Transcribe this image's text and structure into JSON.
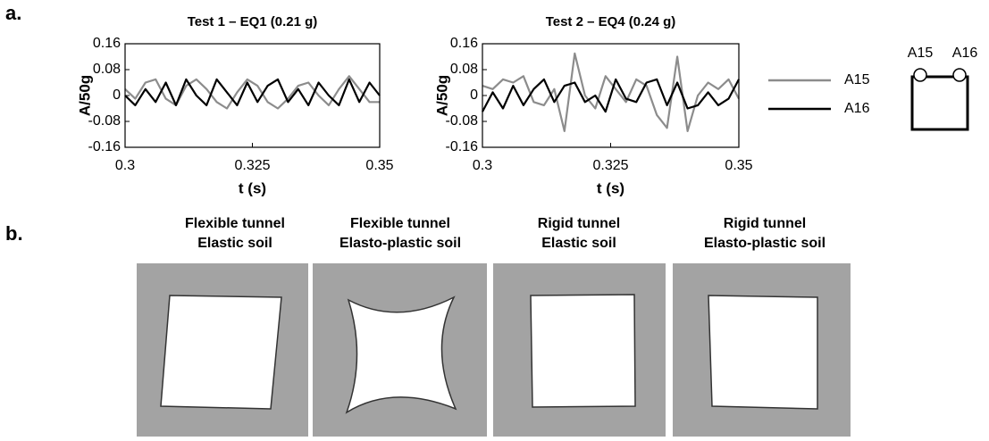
{
  "panel_labels": [
    "a.",
    "b."
  ],
  "chart_data": [
    {
      "type": "line",
      "title": "Test 1 – EQ1 (0.21 g)",
      "xlabel": "t (s)",
      "ylabel": "A/50g",
      "x": [
        0.3,
        0.302,
        0.304,
        0.306,
        0.308,
        0.31,
        0.312,
        0.314,
        0.316,
        0.318,
        0.32,
        0.322,
        0.324,
        0.326,
        0.328,
        0.33,
        0.332,
        0.334,
        0.336,
        0.338,
        0.34,
        0.342,
        0.344,
        0.346,
        0.348,
        0.35
      ],
      "series": [
        {
          "name": "A15",
          "color": "#8c8c8c",
          "values": [
            0.02,
            -0.01,
            0.04,
            0.05,
            -0.01,
            -0.03,
            0.03,
            0.05,
            0.02,
            -0.02,
            -0.04,
            0.01,
            0.05,
            0.03,
            -0.02,
            -0.04,
            -0.01,
            0.03,
            0.04,
            0.0,
            -0.03,
            0.02,
            0.06,
            0.02,
            -0.02,
            -0.02
          ]
        },
        {
          "name": "A16",
          "color": "#000000",
          "values": [
            0.0,
            -0.03,
            0.02,
            -0.02,
            0.04,
            -0.03,
            0.05,
            0.0,
            -0.03,
            0.05,
            0.01,
            -0.03,
            0.04,
            -0.02,
            0.03,
            0.05,
            -0.02,
            0.02,
            -0.03,
            0.04,
            0.0,
            -0.03,
            0.05,
            -0.02,
            0.04,
            0.0
          ]
        }
      ],
      "xlim": [
        0.3,
        0.35
      ],
      "xticks": [
        0.3,
        0.325,
        0.35
      ],
      "ylim": [
        -0.16,
        0.16
      ],
      "yticks": [
        0.16,
        0.08,
        0,
        -0.08,
        -0.16
      ]
    },
    {
      "type": "line",
      "title": "Test 2 – EQ4 (0.24 g)",
      "xlabel": "t (s)",
      "ylabel": "A/50g",
      "x": [
        0.3,
        0.302,
        0.304,
        0.306,
        0.308,
        0.31,
        0.312,
        0.314,
        0.316,
        0.318,
        0.32,
        0.322,
        0.324,
        0.326,
        0.328,
        0.33,
        0.332,
        0.334,
        0.336,
        0.338,
        0.34,
        0.342,
        0.344,
        0.346,
        0.348,
        0.35
      ],
      "series": [
        {
          "color": "#8c8c8c",
          "values": [
            0.03,
            0.02,
            0.05,
            0.04,
            0.06,
            -0.02,
            -0.03,
            0.02,
            -0.11,
            0.13,
            0.0,
            -0.04,
            0.06,
            0.02,
            -0.02,
            0.05,
            0.03,
            -0.06,
            -0.1,
            0.12,
            -0.11,
            0.0,
            0.04,
            0.02,
            0.05,
            -0.01
          ]
        },
        {
          "color": "#000000",
          "values": [
            -0.05,
            0.01,
            -0.04,
            0.03,
            -0.03,
            0.02,
            0.05,
            -0.02,
            0.03,
            0.04,
            -0.02,
            0.0,
            -0.05,
            0.05,
            -0.01,
            -0.02,
            0.04,
            0.05,
            -0.03,
            0.04,
            -0.04,
            -0.03,
            0.01,
            -0.03,
            -0.01,
            0.05
          ]
        }
      ],
      "xlim": [
        0.3,
        0.35
      ],
      "xticks": [
        0.3,
        0.325,
        0.35
      ],
      "ylim": [
        -0.16,
        0.16
      ],
      "yticks": [
        0.16,
        0.08,
        0,
        -0.08,
        -0.16
      ]
    }
  ],
  "diagram": {
    "labels": [
      "A15",
      "A16"
    ]
  },
  "panels": [
    {
      "title": [
        "Flexible tunnel",
        "Elastic soil"
      ]
    },
    {
      "title": [
        "Flexible tunnel",
        "Elasto-plastic soil"
      ]
    },
    {
      "title": [
        "Rigid tunnel",
        "Elastic soil"
      ]
    },
    {
      "title": [
        "Rigid tunnel",
        "Elasto-plastic soil"
      ]
    }
  ]
}
